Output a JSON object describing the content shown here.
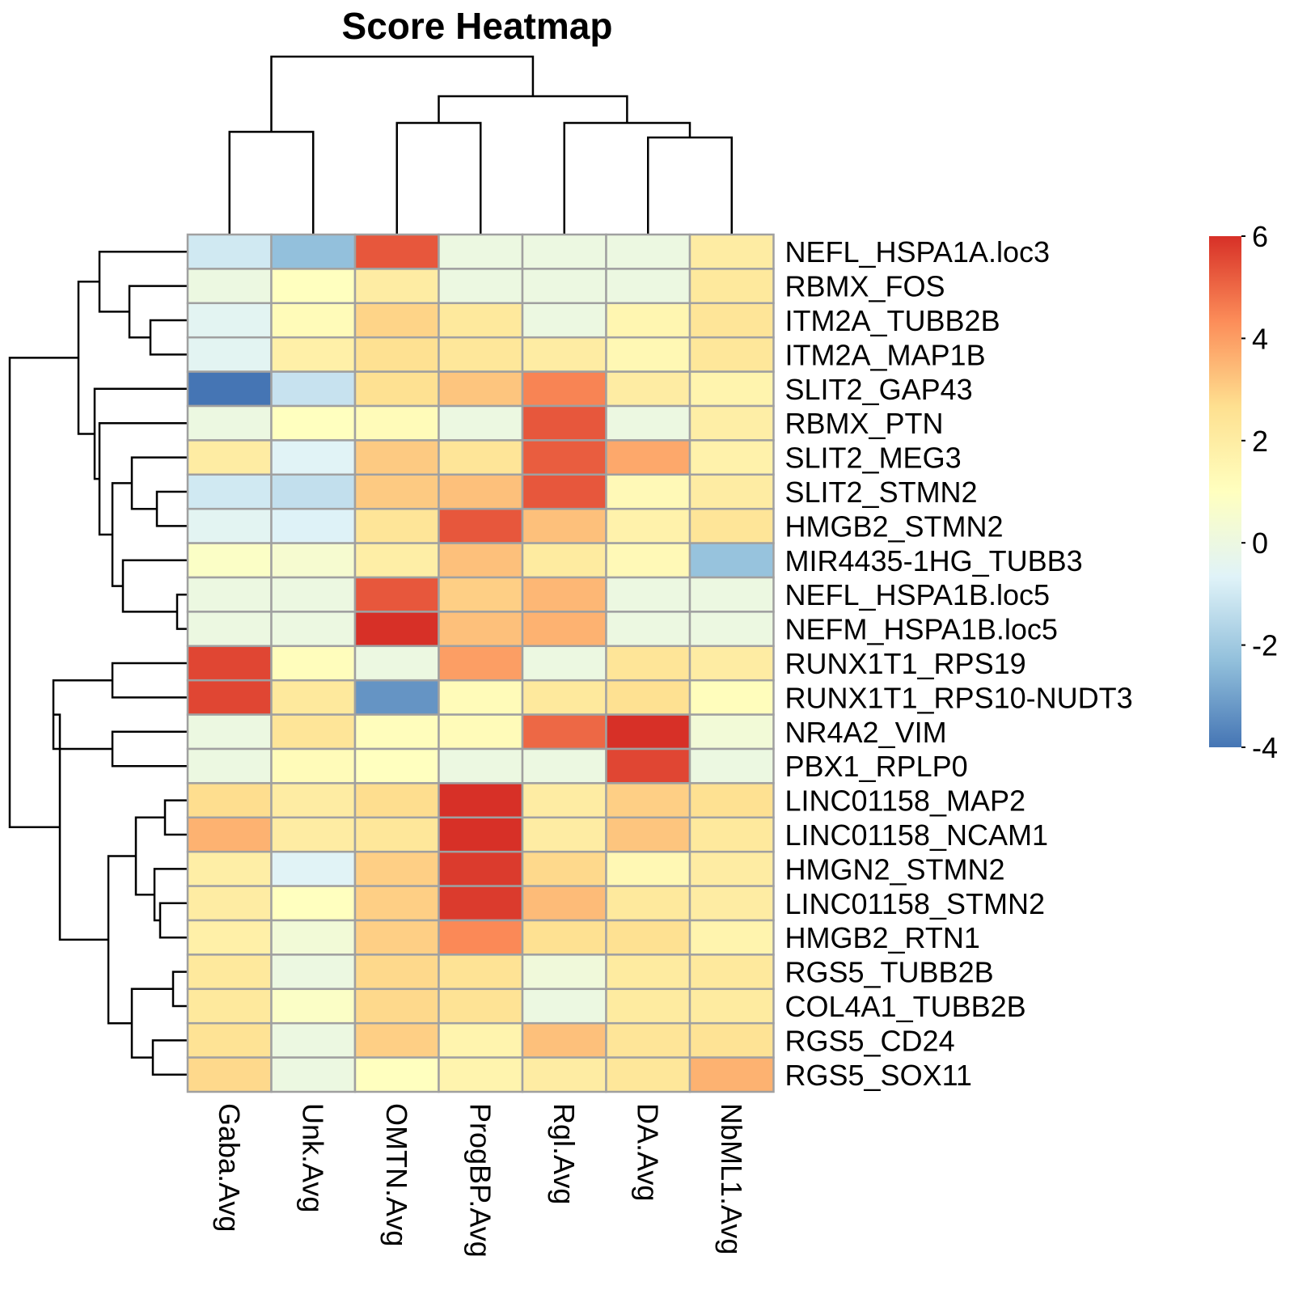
{
  "chart_data": {
    "type": "heatmap",
    "title": "Score Heatmap",
    "columns": [
      "Gaba.Avg",
      "Unk.Avg",
      "OMTN.Avg",
      "ProgBP.Avg",
      "Rgl.Avg",
      "DA.Avg",
      "NbML1.Avg"
    ],
    "rows": [
      "NEFL_HSPA1A.loc3",
      "RBMX_FOS",
      "ITM2A_TUBB2B",
      "ITM2A_MAP1B",
      "SLIT2_GAP43",
      "RBMX_PTN",
      "SLIT2_MEG3",
      "SLIT2_STMN2",
      "HMGB2_STMN2",
      "MIR4435-1HG_TUBB3",
      "NEFL_HSPA1B.loc5",
      "NEFM_HSPA1B.loc5",
      "RUNX1T1_RPS19",
      "RUNX1T1_RPS10-NUDT3",
      "NR4A2_VIM",
      "PBX1_RPLP0",
      "LINC01158_MAP2",
      "LINC01158_NCAM1",
      "HMGN2_STMN2",
      "LINC01158_STMN2",
      "HMGB2_RTN1",
      "RGS5_TUBB2B",
      "COL4A1_TUBB2B",
      "RGS5_CD24",
      "RGS5_SOX11"
    ],
    "values": [
      [
        -1.0,
        -2.3,
        5.3,
        0.0,
        0.0,
        0.0,
        2.0
      ],
      [
        0.0,
        1.0,
        2.0,
        0.0,
        0.0,
        0.0,
        2.2
      ],
      [
        -0.5,
        1.2,
        2.9,
        2.2,
        0.0,
        1.5,
        2.4
      ],
      [
        -0.5,
        1.8,
        2.6,
        2.3,
        2.0,
        1.4,
        2.3
      ],
      [
        -4.0,
        -1.2,
        2.6,
        3.2,
        4.5,
        2.0,
        1.6
      ],
      [
        0.0,
        1.0,
        1.2,
        0.0,
        5.3,
        0.0,
        1.9
      ],
      [
        2.0,
        -0.6,
        3.1,
        2.4,
        5.2,
        3.8,
        1.7
      ],
      [
        -1.0,
        -1.3,
        3.1,
        3.3,
        5.3,
        1.3,
        2.0
      ],
      [
        -0.5,
        -0.7,
        2.4,
        5.3,
        3.3,
        1.7,
        2.4
      ],
      [
        0.8,
        0.5,
        1.9,
        3.3,
        2.1,
        1.3,
        -2.2
      ],
      [
        0.0,
        0.0,
        5.3,
        3.0,
        3.5,
        0.0,
        0.0
      ],
      [
        0.0,
        0.0,
        6.0,
        3.3,
        3.6,
        0.0,
        0.0
      ],
      [
        5.6,
        1.1,
        0.0,
        4.0,
        0.0,
        2.4,
        2.0
      ],
      [
        5.6,
        2.2,
        -3.3,
        1.2,
        2.2,
        2.6,
        1.1
      ],
      [
        0.0,
        2.4,
        1.1,
        1.2,
        5.0,
        6.0,
        0.3
      ],
      [
        0.0,
        1.2,
        1.0,
        0.0,
        0.0,
        5.6,
        0.0
      ],
      [
        2.7,
        2.0,
        2.7,
        6.2,
        2.0,
        3.0,
        2.6
      ],
      [
        3.6,
        2.0,
        2.3,
        6.0,
        2.0,
        3.2,
        2.2
      ],
      [
        1.9,
        -0.6,
        3.0,
        5.8,
        2.8,
        1.4,
        2.0
      ],
      [
        2.0,
        1.0,
        3.0,
        5.8,
        3.4,
        2.2,
        2.0
      ],
      [
        1.8,
        0.3,
        3.0,
        4.4,
        2.6,
        2.6,
        1.6
      ],
      [
        2.2,
        0.0,
        2.8,
        2.5,
        0.2,
        2.1,
        2.2
      ],
      [
        2.2,
        0.8,
        2.8,
        2.5,
        0.0,
        2.1,
        2.1
      ],
      [
        2.5,
        0.0,
        3.0,
        1.6,
        3.3,
        2.4,
        2.5
      ],
      [
        2.8,
        0.0,
        1.0,
        1.6,
        2.0,
        2.3,
        3.6
      ]
    ],
    "color_scale": {
      "min": -4,
      "max": 6,
      "ticks": [
        6,
        4,
        2,
        0,
        -2,
        -4
      ],
      "tick_labels": [
        "6",
        "4",
        "2",
        "0",
        "-2",
        "-4"
      ],
      "palette": [
        "#4575B4",
        "#91BFDB",
        "#E0F3F8",
        "#FFFFBF",
        "#FEE090",
        "#FC8D59",
        "#D73027"
      ]
    },
    "legend_placement": "right",
    "row_dendrogram": true,
    "column_dendrogram": true
  }
}
